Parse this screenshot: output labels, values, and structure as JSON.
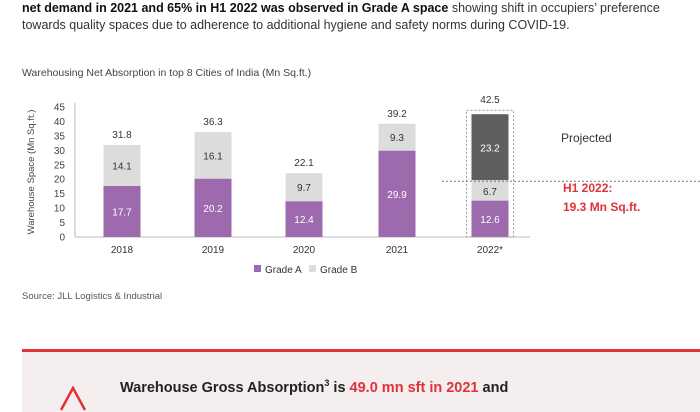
{
  "intro": {
    "line1_bold": "net demand in 2021 and 65% in H1 2022 was observed in Grade A space",
    "line1_rest": " showing shift in occupiers’ preference",
    "line2": "towards quality spaces due to adherence to additional hygiene and safety norms during COVID-19."
  },
  "source": "Source: JLL Logistics & Industrial",
  "callout": {
    "text_prefix": "Warehouse Gross Absorption",
    "superscript": "3",
    "text_mid": " is ",
    "highlight": "49.0 mn sft in 2021",
    "text_suffix": " and"
  },
  "colors": {
    "grade_a": "#9e6aae",
    "grade_b": "#dcdcdc",
    "projected": "#5f5f5f",
    "accent_red": "#e0323a"
  },
  "chart_data": {
    "type": "bar",
    "stacked": true,
    "title": "Warehousing Net Absorption in top 8 Cities of India (Mn Sq.ft.)",
    "xlabel": "",
    "ylabel": "Warehouse Space (Mn Sq.ft.)",
    "ylim": [
      0,
      45
    ],
    "yticks": [
      0,
      5,
      10,
      15,
      20,
      25,
      30,
      35,
      40,
      45
    ],
    "categories": [
      "2018",
      "2019",
      "2020",
      "2021",
      "2022*"
    ],
    "series": [
      {
        "name": "Grade A",
        "values": [
          17.7,
          20.2,
          12.4,
          29.9,
          12.6
        ]
      },
      {
        "name": "Grade B",
        "values": [
          14.1,
          16.1,
          9.7,
          9.3,
          6.7
        ]
      },
      {
        "name": "Projected",
        "values": [
          null,
          null,
          null,
          null,
          23.2
        ]
      }
    ],
    "totals": [
      "31.8",
      "36.3",
      "22.1",
      "39.2",
      "42.5"
    ],
    "legend": [
      "Grade A",
      "Grade B"
    ],
    "legend_position": "bottom",
    "projected_label": "Projected",
    "h1_label_line1": "H1 2022:",
    "h1_label_line2": "19.3 Mn Sq.ft.",
    "h1_value": 19.3
  }
}
